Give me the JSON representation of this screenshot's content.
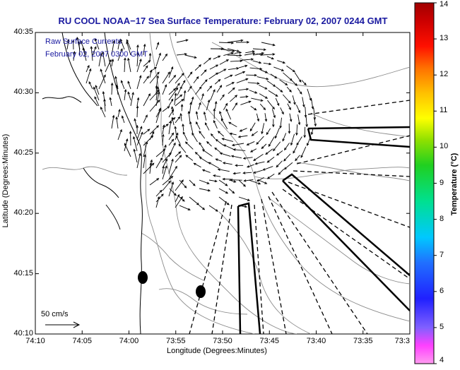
{
  "title": "RU COOL  NOAA−17  Sea Surface Temperature:  February 02, 2007 0244 GMT",
  "subtitle_line1": "Raw Surface Currents",
  "subtitle_line2": "February 02, 2007 0300 GMT",
  "scale_label": "50 cm/s",
  "xlabel": "Longitude (Degrees:Minutes)",
  "ylabel": "Latitude (Degrees:Minutes)",
  "colorbar_label": "Temperature (°C)",
  "x_ticks": [
    "74:10",
    "74:05",
    "74:00",
    "73:55",
    "73:50",
    "73:45",
    "73:40",
    "73:35",
    "73:3"
  ],
  "y_ticks": [
    "40:35",
    "40:30",
    "40:25",
    "40:20",
    "40:15",
    "40:10"
  ],
  "colorbar_ticks": [
    "14",
    "13",
    "12",
    "11",
    "10",
    "9",
    "8",
    "7",
    "6",
    "5",
    "4"
  ],
  "colors": {
    "title": "#1a1aa0",
    "land_outline": "#000000",
    "bathymetry": "#8a8a8a"
  }
}
